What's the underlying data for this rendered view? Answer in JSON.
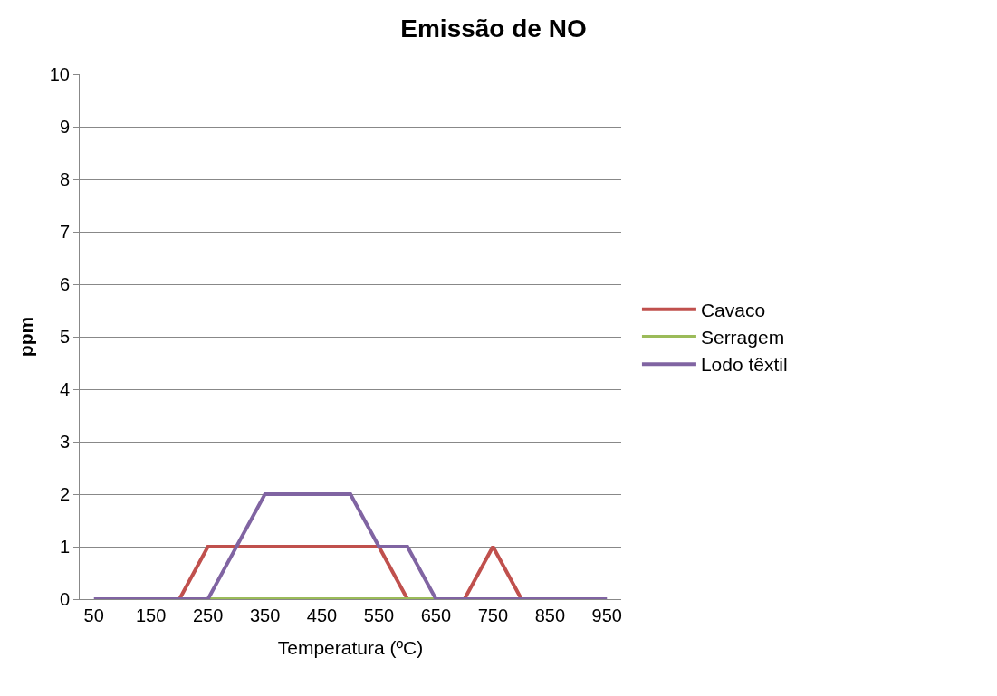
{
  "chart_data": {
    "type": "line",
    "title": "Emissão de NO",
    "xlabel": "Temperatura (ºC)",
    "ylabel": "ppm",
    "categories": [
      "50",
      null,
      "150",
      null,
      "250",
      null,
      "350",
      null,
      "450",
      null,
      "550",
      null,
      "650",
      null,
      "750",
      null,
      "850",
      null,
      "950"
    ],
    "series": [
      {
        "name": "Cavaco",
        "color": "#c0504d",
        "values": [
          null,
          null,
          null,
          0,
          1,
          1,
          1,
          1,
          1,
          1,
          1,
          0,
          0,
          0,
          1,
          0,
          null,
          null,
          null
        ]
      },
      {
        "name": "Serragem",
        "color": "#9bbb59",
        "values": [
          null,
          null,
          null,
          null,
          0,
          0,
          0,
          0,
          0,
          0,
          0,
          0,
          0,
          null,
          null,
          null,
          null,
          null,
          null
        ]
      },
      {
        "name": "Lodo têxtil",
        "color": "#8064a2",
        "values": [
          0,
          0,
          0,
          0,
          0,
          1,
          2,
          2,
          2,
          2,
          1,
          1,
          0,
          0,
          0,
          0,
          0,
          0,
          0
        ]
      }
    ],
    "ylim": [
      0,
      10
    ],
    "yticks": [
      0,
      1,
      2,
      3,
      4,
      5,
      6,
      7,
      8,
      9,
      10
    ],
    "grid": "y",
    "legend": "right",
    "marker": "none",
    "line_style": "solid"
  }
}
